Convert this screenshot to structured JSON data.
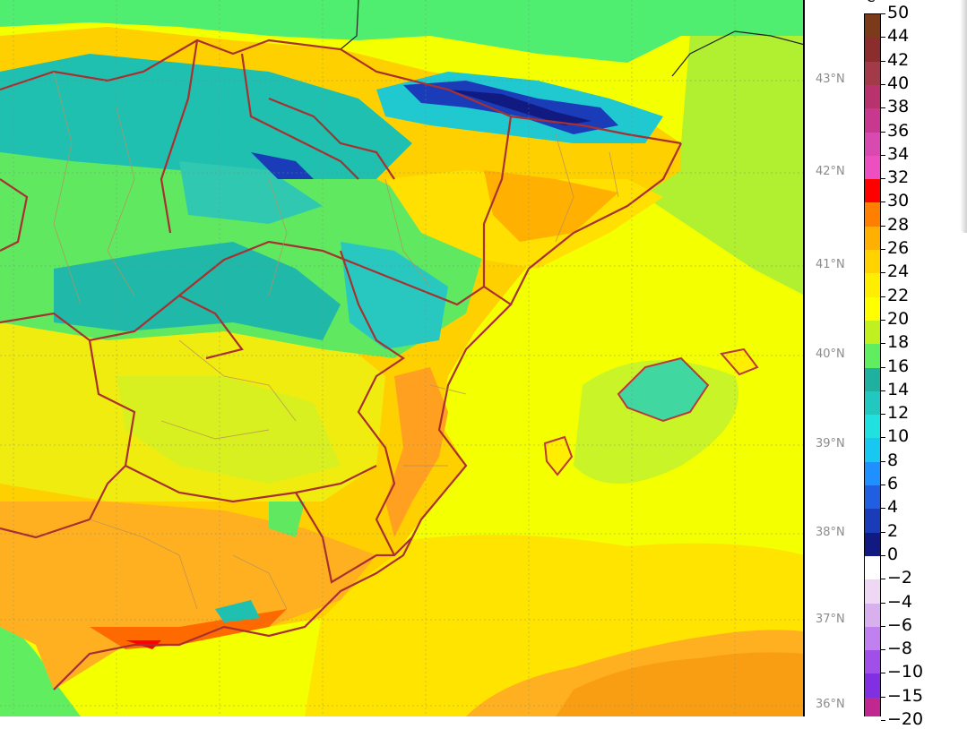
{
  "map": {
    "colorbar": {
      "unit": "ºC",
      "labels": [
        "50",
        "44",
        "42",
        "40",
        "38",
        "36",
        "34",
        "32",
        "30",
        "28",
        "26",
        "24",
        "22",
        "20",
        "18",
        "16",
        "14",
        "12",
        "10",
        "8",
        "6",
        "4",
        "2",
        "0",
        "−2",
        "−4",
        "−6",
        "−8",
        "−10",
        "−15",
        "−20"
      ],
      "colors": [
        "#7b3a1a",
        "#8c2d2d",
        "#a33a4a",
        "#b8336e",
        "#c8388e",
        "#d84ab0",
        "#ee4fc0",
        "#ff0000",
        "#ff7f00",
        "#ffb000",
        "#ffd200",
        "#ffee00",
        "#ffff00",
        "#c0f020",
        "#60ee60",
        "#20b0a0",
        "#20c8c0",
        "#20e0e0",
        "#18c8f0",
        "#1e90ff",
        "#2060e0",
        "#1a3cb8",
        "#101a80",
        "#ffffff",
        "#eed8f4",
        "#d8b0ee",
        "#c080f0",
        "#a050e8",
        "#8030e0",
        "#c02890",
        "#8a1e6a"
      ]
    },
    "latitude_labels": [
      "43°N",
      "42°N",
      "41°N",
      "40°N",
      "39°N",
      "38°N",
      "37°N",
      "36°N"
    ]
  }
}
